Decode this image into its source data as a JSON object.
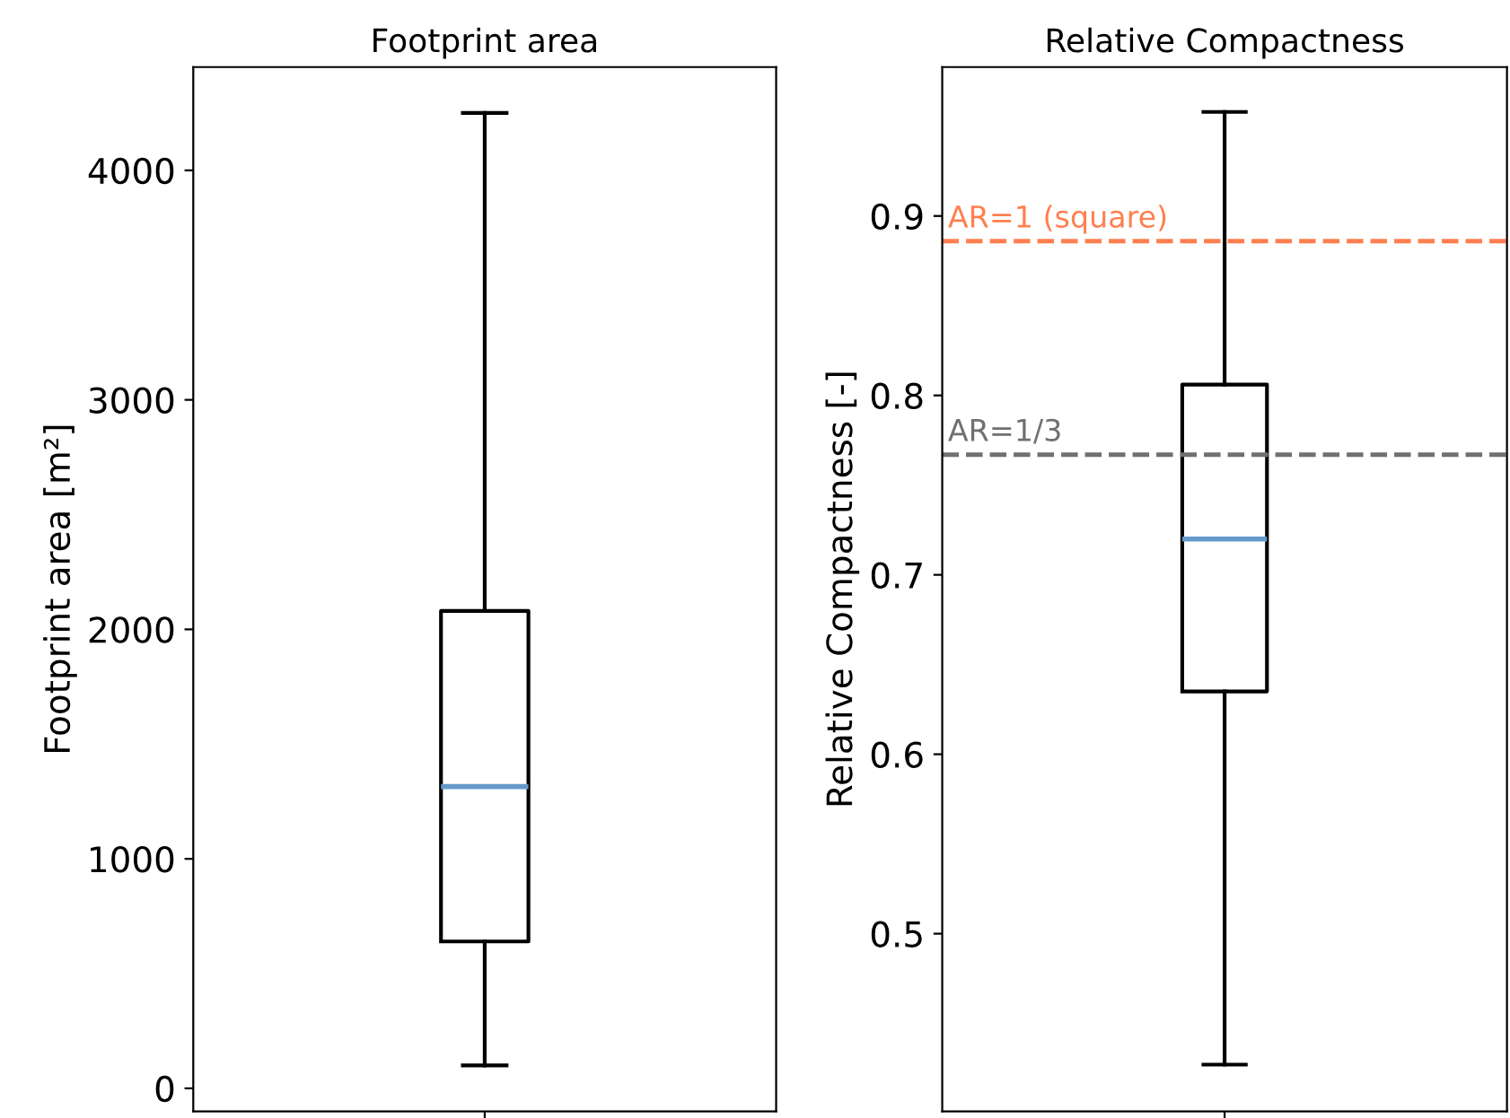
{
  "chart_data": [
    {
      "type": "box",
      "title": "Footprint area",
      "ylabel": "Footprint area [m²]",
      "categories": [
        null
      ],
      "boxes": [
        {
          "low": 100,
          "q1": 640,
          "median": 1315,
          "q3": 2080,
          "high": 4250
        }
      ],
      "color": "#000000",
      "ylim": [
        -100,
        4450
      ],
      "yticks": [
        0,
        1000,
        2000,
        3000,
        4000
      ],
      "grid": false
    },
    {
      "type": "box",
      "title": "Relative Compactness",
      "ylabel": "Relative Compactness [-]",
      "categories": [
        null
      ],
      "boxes": [
        {
          "low": 0.427,
          "q1": 0.635,
          "median": 0.72,
          "q3": 0.806,
          "high": 0.958
        }
      ],
      "color": "#000000",
      "ylim": [
        0.401,
        0.983
      ],
      "yticks": [
        0.5,
        0.6,
        0.7,
        0.8,
        0.9
      ],
      "grid": false,
      "ref_lines": [
        {
          "axis": "y",
          "value": 0.886,
          "label": "AR=1 (square)",
          "color": "#ff7f50",
          "line_style": "dashed"
        },
        {
          "axis": "y",
          "value": 0.767,
          "label": "AR=1/3",
          "color": "#707070",
          "line_style": "dashed"
        }
      ]
    }
  ]
}
